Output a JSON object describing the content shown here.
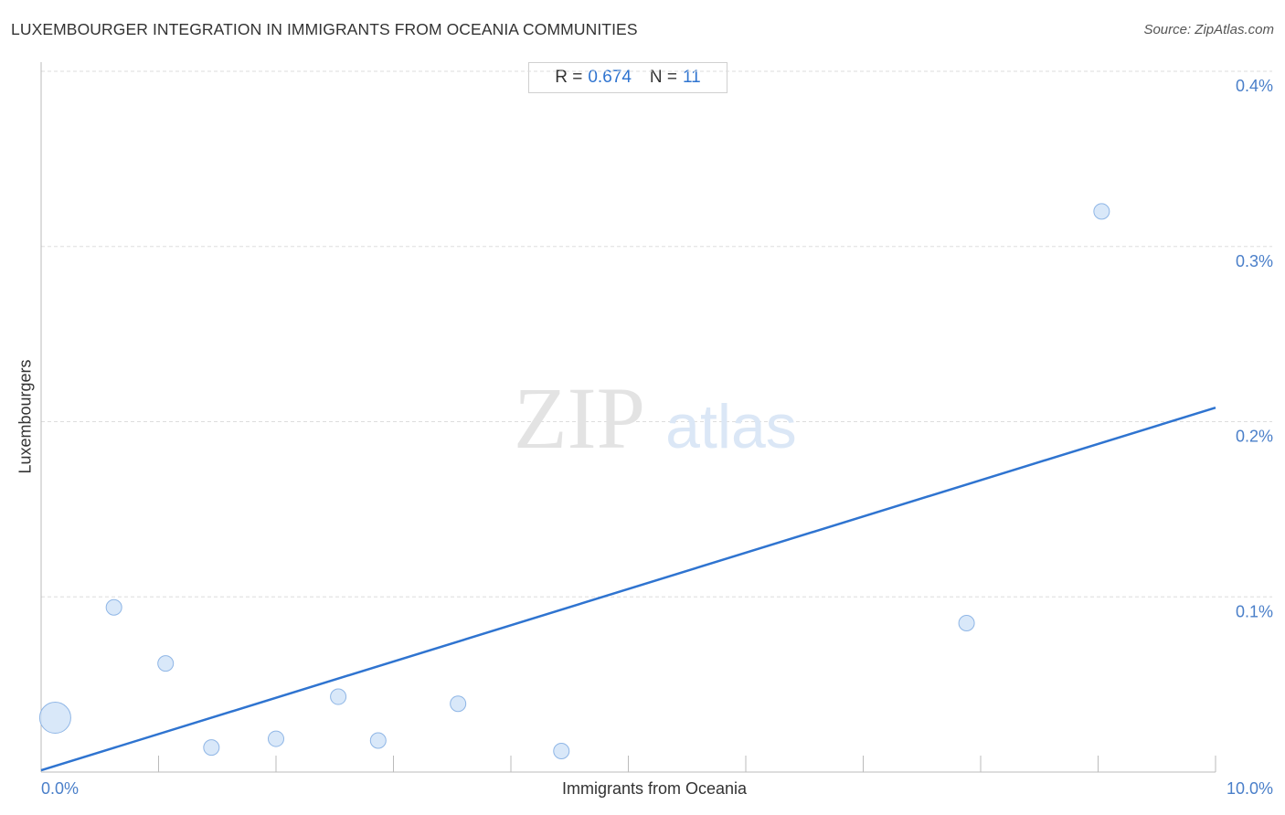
{
  "header": {
    "title": "LUXEMBOURGER INTEGRATION IN IMMIGRANTS FROM OCEANIA COMMUNITIES",
    "source": "Source: ZipAtlas.com"
  },
  "stats": {
    "r_label": "R =",
    "r_value": "0.674",
    "n_label": "N =",
    "n_value": "11"
  },
  "watermark": {
    "zip": "ZIP",
    "atlas": "atlas"
  },
  "colors": {
    "line": "#2f74d0",
    "point_fill": "#cfe2f7",
    "point_stroke": "#8fb6e6",
    "tick_text": "#4a7fc9",
    "grid": "#dddddd"
  },
  "chart_data": {
    "type": "scatter",
    "title": "LUXEMBOURGER INTEGRATION IN IMMIGRANTS FROM OCEANIA COMMUNITIES",
    "xlabel": "Immigrants from Oceania",
    "ylabel": "Luxembourgers",
    "xlim": [
      0,
      10
    ],
    "ylim": [
      0,
      0.4
    ],
    "x_tick_labels": [
      "0.0%",
      "10.0%"
    ],
    "y_ticks": [
      0.1,
      0.2,
      0.3,
      0.4
    ],
    "y_tick_labels": [
      "0.1%",
      "0.2%",
      "0.3%",
      "0.4%"
    ],
    "grid": true,
    "points": [
      {
        "x": 0.12,
        "y": 0.031,
        "size": "large"
      },
      {
        "x": 0.62,
        "y": 0.094,
        "size": "small"
      },
      {
        "x": 1.06,
        "y": 0.062,
        "size": "small"
      },
      {
        "x": 1.45,
        "y": 0.014,
        "size": "small"
      },
      {
        "x": 2.0,
        "y": 0.019,
        "size": "small"
      },
      {
        "x": 2.53,
        "y": 0.043,
        "size": "small"
      },
      {
        "x": 2.87,
        "y": 0.018,
        "size": "small"
      },
      {
        "x": 3.55,
        "y": 0.039,
        "size": "small"
      },
      {
        "x": 4.43,
        "y": 0.012,
        "size": "small"
      },
      {
        "x": 7.88,
        "y": 0.085,
        "size": "small"
      },
      {
        "x": 9.03,
        "y": 0.32,
        "size": "small"
      }
    ],
    "trendline": {
      "x": [
        0,
        10
      ],
      "y": [
        0.001,
        0.208
      ]
    }
  }
}
